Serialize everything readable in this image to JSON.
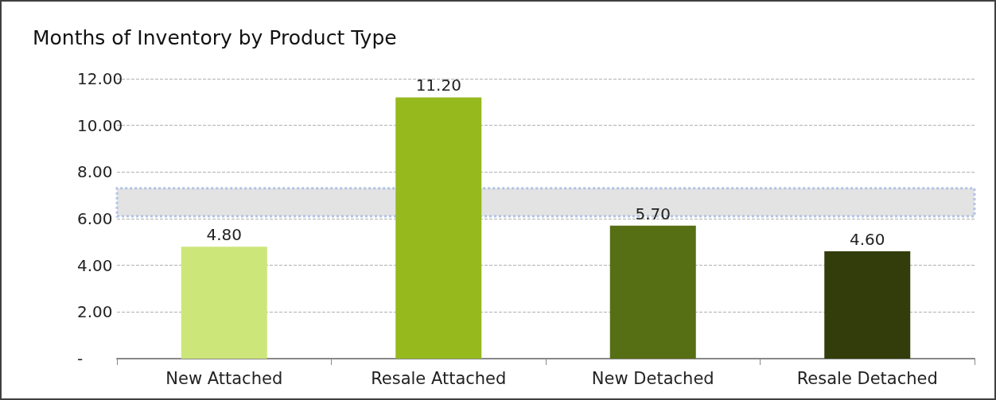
{
  "chart_data": {
    "type": "bar",
    "title": "Months of Inventory by Product Type",
    "categories": [
      "New Attached",
      "Resale Attached",
      "New Detached",
      "Resale Detached"
    ],
    "values": [
      4.8,
      11.2,
      5.7,
      4.6
    ],
    "colors": [
      "#cde67a",
      "#96b91e",
      "#566e14",
      "#323d0b"
    ],
    "value_labels": [
      "4.80",
      "11.20",
      "5.70",
      "4.60"
    ],
    "ylim": [
      0,
      12
    ],
    "yticks": [
      {
        "value": 0,
        "label": "-"
      },
      {
        "value": 2,
        "label": "2.00"
      },
      {
        "value": 4,
        "label": "4.00"
      },
      {
        "value": 6,
        "label": "6.00"
      },
      {
        "value": 8,
        "label": "8.00"
      },
      {
        "value": 10,
        "label": "10.00"
      },
      {
        "value": 12,
        "label": "12.00"
      }
    ],
    "bands": [
      {
        "axis": "y",
        "from": 6.1,
        "to": 7.3,
        "color": "#d9d9d9"
      }
    ],
    "grid": "y"
  }
}
